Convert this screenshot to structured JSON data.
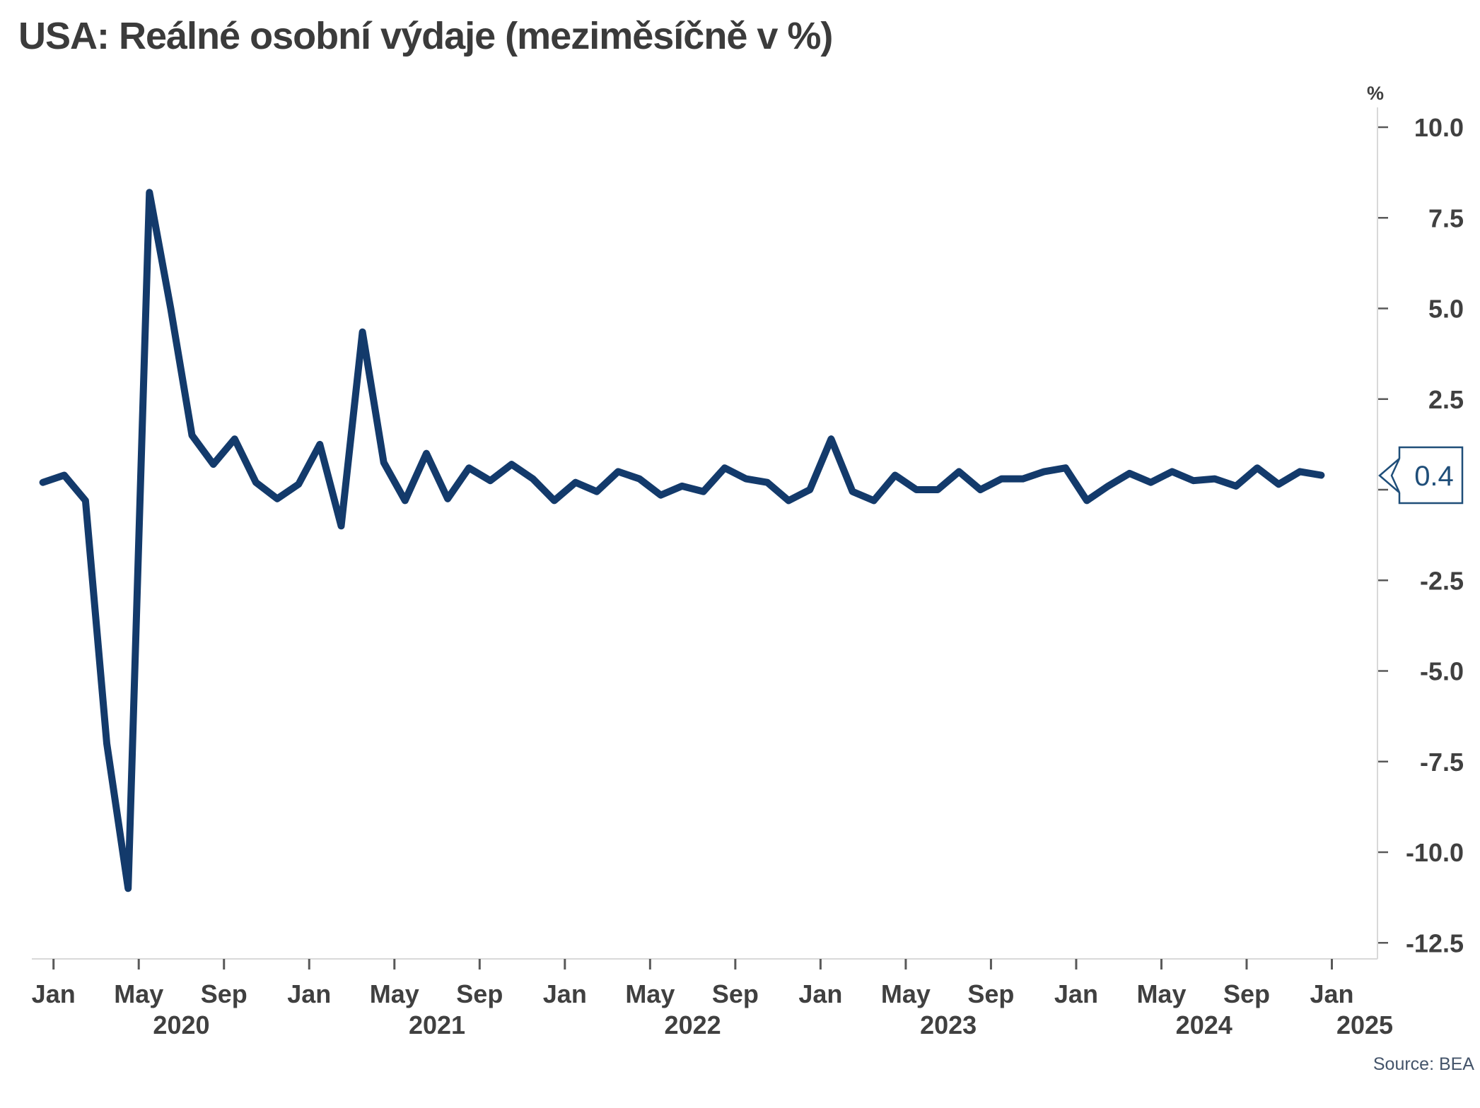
{
  "page": {
    "title": "USA: Reálné osobní výdaje (meziměsíčně v %)",
    "source": "Source: BEA"
  },
  "chart_data": {
    "type": "line",
    "title": "USA: Reálné osobní výdaje (meziměsíčně v %)",
    "unit_label": "%",
    "x_start": "2019-12",
    "x_end": "2024-12",
    "frequency": "monthly",
    "grid": "off",
    "legend": "none",
    "ylim": [
      -12.95,
      10.6
    ],
    "series": [
      {
        "name": "Reálné osobní výdaje meziměsíčně v %",
        "values": [
          0.2,
          0.4,
          -0.3,
          -7.0,
          -11.0,
          8.2,
          5.0,
          1.5,
          0.7,
          1.4,
          0.2,
          -0.25,
          0.15,
          1.25,
          -1.0,
          4.35,
          0.75,
          -0.3,
          1.0,
          -0.25,
          0.6,
          0.25,
          0.7,
          0.3,
          -0.3,
          0.2,
          -0.05,
          0.5,
          0.3,
          -0.15,
          0.1,
          -0.05,
          0.6,
          0.3,
          0.2,
          -0.3,
          0.0,
          1.4,
          -0.05,
          -0.3,
          0.4,
          0.0,
          0.0,
          0.5,
          0.0,
          0.3,
          0.3,
          0.5,
          0.6,
          -0.3,
          0.1,
          0.45,
          0.2,
          0.5,
          0.25,
          0.3,
          0.1,
          0.6,
          0.15,
          0.5,
          0.4
        ]
      }
    ],
    "last_value_label": "0.4",
    "y_ticks": [
      {
        "v": 10,
        "label": "10.0"
      },
      {
        "v": 7.5,
        "label": "7.5"
      },
      {
        "v": 5,
        "label": "5.0"
      },
      {
        "v": 2.5,
        "label": "2.5"
      },
      {
        "v": 0,
        "label": ""
      },
      {
        "v": -2.5,
        "label": "-2.5"
      },
      {
        "v": -5,
        "label": "-5.0"
      },
      {
        "v": -7.5,
        "label": "-7.5"
      },
      {
        "v": -10,
        "label": "-10.0"
      },
      {
        "v": -12.5,
        "label": "-12.5"
      }
    ],
    "x_ticks": [
      {
        "m": 0,
        "label": "Jan"
      },
      {
        "m": 4,
        "label": "May"
      },
      {
        "m": 8,
        "label": "Sep"
      },
      {
        "m": 12,
        "label": "Jan"
      },
      {
        "m": 16,
        "label": "May"
      },
      {
        "m": 20,
        "label": "Sep"
      },
      {
        "m": 24,
        "label": "Jan"
      },
      {
        "m": 28,
        "label": "May"
      },
      {
        "m": 32,
        "label": "Sep"
      },
      {
        "m": 36,
        "label": "Jan"
      },
      {
        "m": 40,
        "label": "May"
      },
      {
        "m": 44,
        "label": "Sep"
      },
      {
        "m": 48,
        "label": "Jan"
      },
      {
        "m": 52,
        "label": "May"
      },
      {
        "m": 56,
        "label": "Sep"
      },
      {
        "m": 60,
        "label": "Jan"
      }
    ],
    "year_labels": [
      {
        "m": 6,
        "label": "2020"
      },
      {
        "m": 18,
        "label": "2021"
      },
      {
        "m": 30,
        "label": "2022"
      },
      {
        "m": 42,
        "label": "2023"
      },
      {
        "m": 54,
        "label": "2024"
      },
      {
        "x": 1930,
        "label": "2025"
      }
    ],
    "colors": {
      "line": "#133a6b",
      "callout": "#1f4e79",
      "title_text": "#3b3b3b",
      "tick_text": "#404040",
      "axis_line": "#d9d9d9",
      "tick_mark": "#595959",
      "source_text": "#44546a"
    }
  }
}
